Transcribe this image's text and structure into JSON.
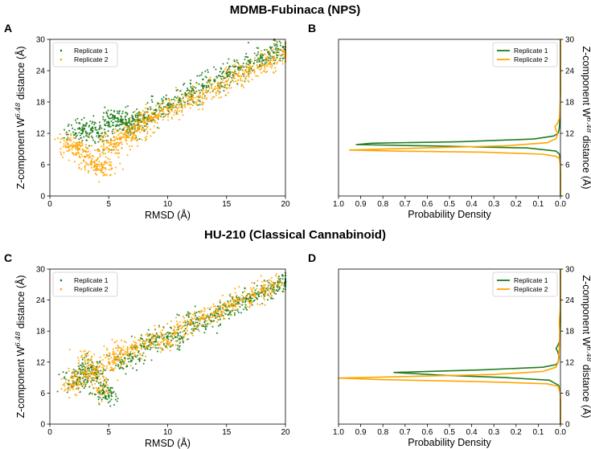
{
  "figure": {
    "title_top": "MDMB-Fubinaca (NPS)",
    "title_bottom": "HU-210 (Classical Cannabinoid)",
    "colors": {
      "replicate_1": "#1e7d1e",
      "replicate_2": "#ffa500"
    }
  },
  "chart_data": [
    {
      "panel": "A",
      "type": "scatter",
      "title": "MDMB-Fubinaca (NPS)",
      "xlabel": "RMSD (Å)",
      "ylabel_prefix": "Z-component W",
      "ylabel_sup": "6.48",
      "ylabel_suffix": " distance (Å)",
      "xlim": [
        0,
        20
      ],
      "ylim": [
        0,
        30
      ],
      "xticks": [
        0,
        5,
        10,
        15,
        20
      ],
      "yticks": [
        0,
        6,
        12,
        18,
        24,
        30
      ],
      "legend_position": "top-left",
      "series": [
        {
          "name": "Replicate 1",
          "color": "#1e7d1e",
          "x": [
            2.2,
            2.8,
            3.5,
            4.2,
            5.0,
            5.5,
            6.0,
            6.5,
            7.0,
            7.5,
            8.0,
            9.0,
            10.0,
            11.0,
            12.0,
            13.0,
            14.0,
            15.0,
            16.0,
            17.0,
            18.0,
            19.0,
            19.8
          ],
          "y": [
            12.0,
            12.5,
            12.8,
            11.5,
            14.0,
            15.0,
            14.5,
            14.0,
            13.0,
            14.5,
            15.0,
            16.5,
            17.5,
            18.5,
            20.0,
            21.0,
            22.0,
            23.5,
            24.5,
            25.5,
            26.5,
            27.5,
            28.5
          ]
        },
        {
          "name": "Replicate 2",
          "color": "#ffa500",
          "x": [
            1.5,
            2.0,
            2.5,
            3.0,
            3.5,
            4.0,
            4.5,
            5.0,
            5.5,
            6.0,
            6.5,
            7.0,
            7.5,
            8.0,
            8.5,
            9.0,
            10.0,
            11.0,
            12.0,
            13.0,
            14.0,
            15.0,
            16.0,
            17.0,
            18.0,
            19.0,
            20.0
          ],
          "y": [
            10.0,
            9.5,
            9.0,
            7.5,
            6.5,
            6.0,
            5.5,
            9.0,
            10.0,
            11.0,
            11.5,
            12.0,
            13.0,
            14.0,
            15.0,
            15.5,
            16.5,
            17.5,
            18.5,
            19.5,
            20.5,
            22.0,
            23.0,
            24.0,
            25.0,
            26.0,
            27.0
          ]
        }
      ]
    },
    {
      "panel": "B",
      "type": "line",
      "xlabel": "Probability Density",
      "ylabel_prefix": "Z-component W",
      "ylabel_sup": "6.48",
      "ylabel_suffix": " distance (Å)",
      "xlim": [
        1.0,
        0.0
      ],
      "ylim": [
        0,
        30
      ],
      "xticks": [
        1.0,
        0.9,
        0.8,
        0.7,
        0.6,
        0.5,
        0.4,
        0.3,
        0.2,
        0.1,
        0.0
      ],
      "yticks": [
        0,
        6,
        12,
        18,
        24,
        30
      ],
      "y_axis_side": "right",
      "legend_position": "top-right",
      "series": [
        {
          "name": "Replicate 1",
          "color": "#1e7d1e",
          "y": [
            0,
            4,
            7,
            8,
            8.6,
            9.2,
            9.6,
            9.85,
            10.1,
            10.4,
            10.9,
            11.5,
            12.0,
            13,
            15,
            20,
            30
          ],
          "density": [
            0,
            0,
            0.001,
            0.004,
            0.02,
            0.15,
            0.6,
            0.92,
            0.85,
            0.45,
            0.12,
            0.03,
            0.01,
            0.005,
            0.002,
            0,
            0
          ]
        },
        {
          "name": "Replicate 2",
          "color": "#ffa500",
          "y": [
            0,
            4,
            6,
            7.2,
            7.6,
            8.0,
            8.4,
            8.6,
            8.8,
            9.1,
            9.6,
            10.2,
            11.0,
            12.0,
            12.6,
            13.3,
            14.0,
            15.0,
            18,
            24,
            30
          ],
          "density": [
            0,
            0,
            0.001,
            0.005,
            0.02,
            0.08,
            0.35,
            0.75,
            0.95,
            0.7,
            0.25,
            0.06,
            0.02,
            0.012,
            0.02,
            0.025,
            0.012,
            0.004,
            0.001,
            0,
            0
          ]
        }
      ]
    },
    {
      "panel": "C",
      "type": "scatter",
      "title": "HU-210 (Classical Cannabinoid)",
      "xlabel": "RMSD (Å)",
      "ylabel_prefix": "Z-component W",
      "ylabel_sup": "6.48",
      "ylabel_suffix": " distance (Å)",
      "xlim": [
        0,
        20
      ],
      "ylim": [
        0,
        30
      ],
      "xticks": [
        0,
        5,
        10,
        15,
        20
      ],
      "yticks": [
        0,
        6,
        12,
        18,
        24,
        30
      ],
      "legend_position": "top-left",
      "series": [
        {
          "name": "Replicate 1",
          "color": "#1e7d1e",
          "x": [
            2.0,
            2.5,
            3.0,
            3.5,
            4.0,
            4.5,
            5.0,
            6.0,
            7.0,
            8.0,
            9.0,
            10.0,
            11.0,
            12.0,
            13.0,
            14.0,
            15.0,
            16.0,
            17.0,
            18.0,
            19.0,
            20.0
          ],
          "y": [
            8.0,
            9.0,
            10.0,
            11.0,
            9.0,
            6.0,
            5.5,
            12.0,
            13.0,
            15.0,
            16.0,
            17.0,
            16.5,
            20.0,
            19.0,
            21.0,
            22.0,
            23.5,
            24.5,
            25.5,
            26.5,
            27.5
          ]
        },
        {
          "name": "Replicate 2",
          "color": "#ffa500",
          "x": [
            2.0,
            2.5,
            3.0,
            3.5,
            4.0,
            4.5,
            5.0,
            5.5,
            6.0,
            7.0,
            8.0,
            9.0,
            10.0,
            11.0,
            12.0,
            13.0,
            14.0,
            15.0,
            16.0,
            17.0,
            18.0,
            19.0
          ],
          "y": [
            7.5,
            8.5,
            10.0,
            12.5,
            10.0,
            7.0,
            12.0,
            13.0,
            14.0,
            14.5,
            15.5,
            17.0,
            16.0,
            19.0,
            19.5,
            20.5,
            21.5,
            22.5,
            24.0,
            25.0,
            26.0,
            27.0
          ]
        }
      ]
    },
    {
      "panel": "D",
      "type": "line",
      "xlabel": "Probability Density",
      "ylabel_prefix": "Z-component W",
      "ylabel_sup": "6.48",
      "ylabel_suffix": " distance (Å)",
      "xlim": [
        1.0,
        0.0
      ],
      "ylim": [
        0,
        30
      ],
      "xticks": [
        1.0,
        0.9,
        0.8,
        0.7,
        0.6,
        0.5,
        0.4,
        0.3,
        0.2,
        0.1,
        0.0
      ],
      "yticks": [
        0,
        6,
        12,
        18,
        24,
        30
      ],
      "y_axis_side": "right",
      "legend_position": "top-right",
      "series": [
        {
          "name": "Replicate 1",
          "color": "#1e7d1e",
          "y": [
            0,
            4,
            6,
            7.5,
            8.5,
            9.0,
            9.5,
            10.0,
            10.5,
            11.0,
            11.5,
            12.0,
            13.0,
            14.0,
            14.6,
            15.2,
            16.0,
            17.0,
            20,
            30
          ],
          "density": [
            0,
            0,
            0.001,
            0.008,
            0.05,
            0.25,
            0.55,
            0.75,
            0.35,
            0.08,
            0.02,
            0.01,
            0.006,
            0.012,
            0.02,
            0.012,
            0.004,
            0.001,
            0,
            0
          ]
        },
        {
          "name": "Replicate 2",
          "color": "#ffa500",
          "y": [
            0,
            4,
            6,
            7.3,
            7.8,
            8.2,
            8.6,
            8.9,
            9.2,
            9.6,
            10.2,
            11.0,
            12.0,
            14.0,
            16.0,
            18.0,
            19.5,
            20.5,
            22,
            25,
            30
          ],
          "density": [
            0,
            0,
            0.001,
            0.01,
            0.06,
            0.35,
            0.8,
            1.0,
            0.7,
            0.3,
            0.08,
            0.02,
            0.01,
            0.006,
            0.004,
            0.003,
            0.005,
            0.004,
            0.001,
            0,
            0
          ]
        }
      ]
    }
  ]
}
